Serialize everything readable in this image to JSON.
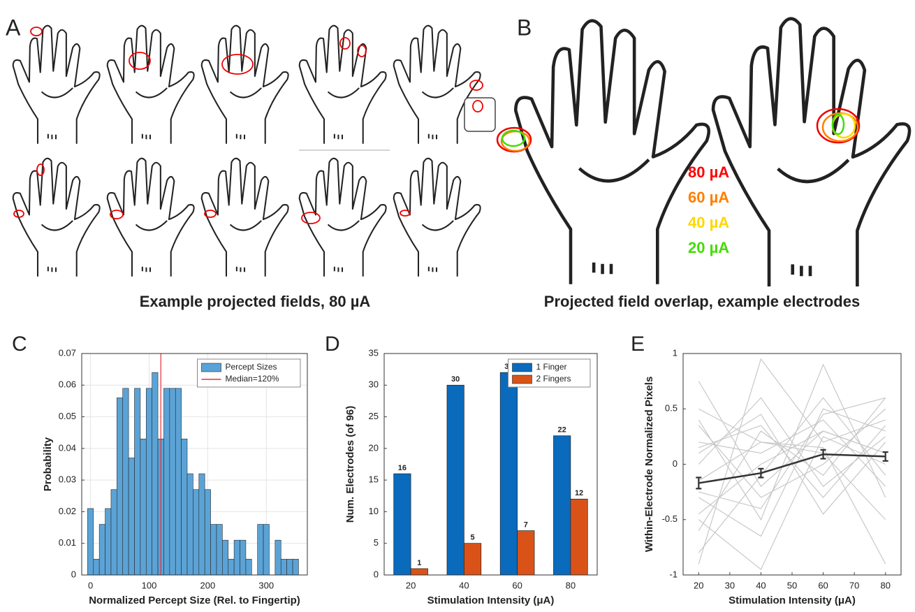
{
  "panel_a": {
    "label": "A",
    "caption": "Example projected fields, 80 µA"
  },
  "panel_b": {
    "label": "B",
    "caption": "Projected field overlap, example electrodes",
    "legend": [
      {
        "text": "80 µA",
        "color": "#ff0000"
      },
      {
        "text": "60 µA",
        "color": "#ff7f00"
      },
      {
        "text": "40 µA",
        "color": "#ffd700"
      },
      {
        "text": "20 µA",
        "color": "#44dd00"
      }
    ]
  },
  "chart_data": [
    {
      "type": "histogram",
      "panel_label": "C",
      "x_label": "Normalized Percept Size (Rel. to Fingertip)",
      "y_label": "Probability",
      "bins": [
        -5,
        5,
        15,
        25,
        35,
        45,
        55,
        65,
        75,
        85,
        95,
        105,
        115,
        125,
        135,
        145,
        155,
        165,
        175,
        185,
        195,
        205,
        215,
        225,
        235,
        245,
        255,
        265,
        275,
        285,
        295,
        305,
        315,
        325,
        335,
        345,
        355
      ],
      "series": [
        {
          "name": "Percept Sizes",
          "color": "#5ba3d6",
          "values": [
            0.021,
            0.005,
            0.016,
            0.021,
            0.027,
            0.056,
            0.059,
            0.037,
            0.059,
            0.043,
            0.059,
            0.064,
            0.043,
            0.059,
            0.059,
            0.059,
            0.043,
            0.032,
            0.027,
            0.032,
            0.027,
            0.016,
            0.016,
            0.011,
            0.005,
            0.011,
            0.011,
            0.005,
            0,
            0.016,
            0.016,
            0,
            0.011,
            0.005,
            0.005,
            0.005
          ]
        }
      ],
      "reference_line": {
        "name": "Median=120%",
        "value": 120,
        "color": "#e8303a"
      },
      "xlim": [
        -15,
        370
      ],
      "xticks": [
        0,
        100,
        200,
        300
      ],
      "ylim": [
        0,
        0.07
      ],
      "yticks": [
        0,
        0.01,
        0.02,
        0.03,
        0.04,
        0.05,
        0.06,
        0.07
      ],
      "grid": true,
      "legend": "upper right"
    },
    {
      "type": "bar",
      "panel_label": "D",
      "x_label": "Stimulation Intensity (μA)",
      "y_label": "Num. Electrodes (of 96)",
      "categories": [
        "20",
        "40",
        "60",
        "80"
      ],
      "series": [
        {
          "name": "1 Finger",
          "color": "#0a6bbd",
          "values": [
            16,
            30,
            32,
            22
          ]
        },
        {
          "name": "2 Fingers",
          "color": "#d95319",
          "values": [
            1,
            5,
            7,
            12
          ]
        }
      ],
      "ylim": [
        0,
        35
      ],
      "yticks": [
        0,
        5,
        10,
        15,
        20,
        25,
        30,
        35
      ],
      "grid": false,
      "legend": "upper right"
    },
    {
      "type": "line",
      "panel_label": "E",
      "x_label": "Stimulation Intensity (μA)",
      "y_label": "Within-Electrode Normalized Pixels",
      "x": [
        20,
        40,
        60,
        80
      ],
      "series": [
        {
          "color": "#c8c8c8",
          "values": [
            0.75,
            -0.2,
            0.3,
            0.1
          ]
        },
        {
          "color": "#c8c8c8",
          "values": [
            -0.9,
            0.95,
            0.2,
            0.4
          ]
        },
        {
          "color": "#c8c8c8",
          "values": [
            0.4,
            -0.5,
            0.9,
            -0.3
          ]
        },
        {
          "color": "#c8c8c8",
          "values": [
            -0.6,
            0.3,
            -0.1,
            0.6
          ]
        },
        {
          "color": "#c8c8c8",
          "values": [
            0.2,
            0.1,
            0.4,
            -0.2
          ]
        },
        {
          "color": "#c8c8c8",
          "values": [
            -0.3,
            -0.65,
            0.5,
            0.3
          ]
        },
        {
          "color": "#c8c8c8",
          "values": [
            0.1,
            0.45,
            -0.45,
            0.2
          ]
        },
        {
          "color": "#c8c8c8",
          "values": [
            -0.15,
            0.2,
            0.1,
            -0.5
          ]
        },
        {
          "color": "#c8c8c8",
          "values": [
            0.35,
            -0.3,
            0.0,
            0.5
          ]
        },
        {
          "color": "#c8c8c8",
          "values": [
            -0.45,
            0.0,
            0.3,
            0.1
          ]
        },
        {
          "color": "#c8c8c8",
          "values": [
            0.0,
            0.6,
            -0.2,
            0.25
          ]
        },
        {
          "color": "#c8c8c8",
          "values": [
            -0.8,
            -0.1,
            0.6,
            -0.1
          ]
        },
        {
          "color": "#c8c8c8",
          "values": [
            0.5,
            0.2,
            0.15,
            -0.9
          ]
        },
        {
          "color": "#c8c8c8",
          "values": [
            -0.25,
            -0.4,
            0.45,
            0.6
          ]
        },
        {
          "color": "#c8c8c8",
          "values": [
            0.15,
            0.35,
            -0.3,
            0.35
          ]
        },
        {
          "color": "#c8c8c8",
          "values": [
            -0.5,
            -0.95,
            0.25,
            0.0
          ]
        },
        {
          "color": "#333333",
          "values": [
            -0.17,
            -0.08,
            0.09,
            0.07
          ],
          "errors": [
            0.05,
            0.04,
            0.04,
            0.04
          ]
        }
      ],
      "xlim": [
        15,
        85
      ],
      "xticks": [
        20,
        30,
        40,
        50,
        60,
        70,
        80
      ],
      "ylim": [
        -1,
        1
      ],
      "yticks": [
        -1,
        -0.5,
        0,
        0.5,
        1
      ],
      "grid": false
    }
  ]
}
